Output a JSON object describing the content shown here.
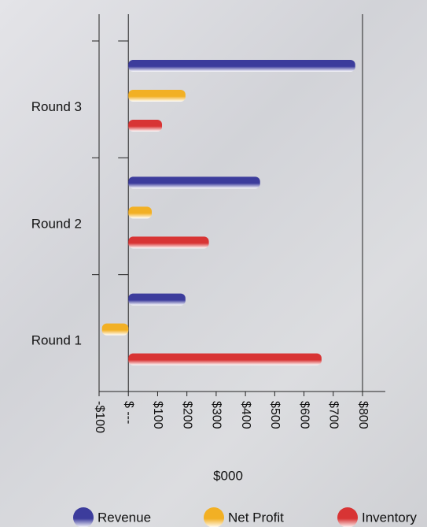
{
  "chart_data": {
    "type": "bar",
    "orientation": "horizontal",
    "categories": [
      "Round 3",
      "Round 2",
      "Round 1"
    ],
    "series": [
      {
        "name": "Revenue",
        "color": "#3c3c9c",
        "values": [
          775,
          450,
          195
        ]
      },
      {
        "name": "Net Profit",
        "color": "#f2b024",
        "values": [
          195,
          80,
          -90
        ]
      },
      {
        "name": "Inventory",
        "color": "#d83434",
        "values": [
          115,
          275,
          660
        ]
      }
    ],
    "xlabel": "$000",
    "xlim": [
      -100,
      800
    ],
    "xticks": [
      {
        "value": -100,
        "label": "-$100"
      },
      {
        "value": 0,
        "label": "$ ---"
      },
      {
        "value": 100,
        "label": "$100"
      },
      {
        "value": 200,
        "label": "$200"
      },
      {
        "value": 300,
        "label": "$300"
      },
      {
        "value": 400,
        "label": "$400"
      },
      {
        "value": 500,
        "label": "$500"
      },
      {
        "value": 600,
        "label": "$600"
      },
      {
        "value": 700,
        "label": "$700"
      },
      {
        "value": 800,
        "label": "$800"
      }
    ],
    "legend": "bottom"
  }
}
